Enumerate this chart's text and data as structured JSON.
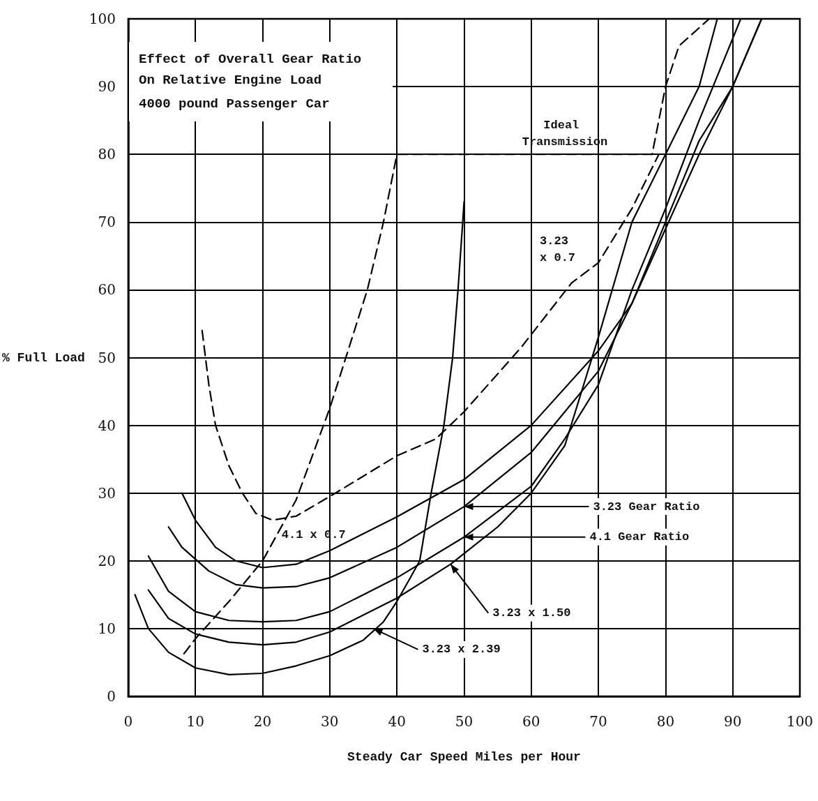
{
  "chart_data": {
    "type": "line",
    "title": "Effect of Overall Gear Ratio On Relative Engine Load",
    "subtitle": "4000 pound Passenger Car",
    "xlabel": "Steady Car Speed Miles per Hour",
    "ylabel": "% Full Load",
    "xlim": [
      0,
      100
    ],
    "xticks": [
      0,
      10,
      20,
      30,
      40,
      50,
      60,
      70,
      80,
      90,
      100
    ],
    "ylim": [
      0,
      100
    ],
    "yticks": [
      0,
      10,
      20,
      30,
      40,
      50,
      60,
      70,
      80,
      90,
      100
    ],
    "grid": true,
    "marker": "none",
    "series": [
      {
        "color": "#000000",
        "line_style": "solid",
        "x": [
          8,
          10,
          13,
          16,
          20,
          25,
          30,
          40,
          50,
          60,
          70,
          75,
          80,
          85,
          90,
          94.3
        ],
        "values": [
          30,
          26,
          22,
          20,
          19,
          19.5,
          21.5,
          26.5,
          32,
          40,
          51,
          58,
          69,
          80,
          90,
          100
        ]
      },
      {
        "color": "#000000",
        "line_style": "solid",
        "x": [
          6,
          8,
          12,
          16,
          20,
          25,
          30,
          40,
          50,
          60,
          65,
          70,
          75,
          80,
          85,
          90,
          94.3
        ],
        "values": [
          25,
          22,
          18.5,
          16.5,
          16,
          16.2,
          17.5,
          22,
          28,
          36,
          42,
          48,
          58,
          70,
          82,
          90,
          100
        ]
      },
      {
        "color": "#000000",
        "line_style": "solid",
        "x": [
          3,
          6,
          10,
          15,
          20,
          25,
          30,
          40,
          50,
          60,
          65,
          70,
          75,
          80,
          85,
          91.2
        ],
        "values": [
          20.7,
          15.5,
          12.5,
          11.2,
          11,
          11.2,
          12.5,
          17.5,
          23.5,
          31,
          38,
          46,
          60,
          72,
          85,
          100
        ]
      },
      {
        "color": "#000000",
        "line_style": "solid",
        "x": [
          3,
          6,
          10,
          15,
          20,
          25,
          30,
          40,
          48,
          55,
          60,
          65,
          70,
          75,
          80,
          85,
          87.7
        ],
        "values": [
          15.7,
          11.5,
          9.2,
          8,
          7.6,
          8,
          9.5,
          14.5,
          19.5,
          25,
          30,
          37,
          53,
          70,
          80,
          90,
          100
        ]
      },
      {
        "color": "#000000",
        "line_style": "solid",
        "x": [
          1,
          3,
          6,
          10,
          15,
          20,
          25,
          30,
          35,
          38,
          40,
          42,
          43.4,
          45.1,
          47,
          48.3,
          49.1,
          49.8,
          50
        ],
        "values": [
          15,
          10,
          6.5,
          4.2,
          3.2,
          3.4,
          4.5,
          6,
          8.3,
          11,
          14,
          17.5,
          20,
          30,
          40,
          50,
          60,
          70,
          73
        ]
      },
      {
        "color": "#000000",
        "line_style": "dashed",
        "x": [
          11,
          12,
          13,
          15,
          17,
          19,
          21.5,
          25,
          30,
          40,
          45.8,
          50,
          58.5,
          66,
          70,
          75,
          79
        ],
        "values": [
          54,
          46,
          40,
          34,
          30,
          27,
          26,
          26.6,
          29.5,
          35.5,
          38,
          42,
          51.5,
          61,
          64,
          72,
          80
        ]
      },
      {
        "color": "#000000",
        "line_style": "dashed",
        "x": [
          8.3,
          10,
          15,
          20,
          25,
          30,
          35.6,
          38,
          40,
          78,
          79,
          80,
          82,
          86.5,
          94.3
        ],
        "values": [
          6.3,
          8.5,
          14,
          20,
          29,
          42.5,
          60,
          70,
          80,
          80,
          85,
          90,
          96,
          100,
          100
        ]
      }
    ],
    "annotations": [
      {
        "text": "Ideal Transmission",
        "x": 65,
        "y": 80
      },
      {
        "text": "3.23 x 0.7",
        "x": 66,
        "y": 61
      },
      {
        "text": "3.23 Gear Ratio",
        "x": 50,
        "y": 28
      },
      {
        "text": "4.1 Gear Ratio",
        "x": 50,
        "y": 23.5
      },
      {
        "text": "3.23 x 1.50",
        "x": 48,
        "y": 19.5
      },
      {
        "text": "3.23 x 2.39",
        "x": 36.5,
        "y": 10
      },
      {
        "text": "4.1 x 0.7",
        "x": 25,
        "y": 19.5
      }
    ]
  }
}
